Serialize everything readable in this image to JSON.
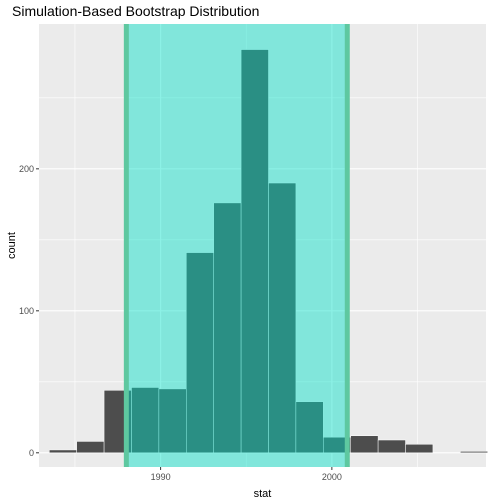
{
  "chart_data": {
    "type": "bar",
    "title": "Simulation-Based Bootstrap Distribution",
    "xlabel": "stat",
    "ylabel": "count",
    "xlim": [
      1982.9,
      2009.0
    ],
    "ylim": [
      -10,
      302
    ],
    "xticks": [
      1990,
      2000
    ],
    "yticks": [
      0,
      100,
      200
    ],
    "grid": true,
    "bin_width": 1.6,
    "bins": [
      {
        "x": 1984.3,
        "count": 2
      },
      {
        "x": 1985.9,
        "count": 8
      },
      {
        "x": 1987.5,
        "count": 44
      },
      {
        "x": 1989.1,
        "count": 46
      },
      {
        "x": 1990.7,
        "count": 45
      },
      {
        "x": 1992.3,
        "count": 141
      },
      {
        "x": 1993.9,
        "count": 176
      },
      {
        "x": 1995.5,
        "count": 284
      },
      {
        "x": 1997.1,
        "count": 190
      },
      {
        "x": 1998.7,
        "count": 36
      },
      {
        "x": 2000.3,
        "count": 11
      },
      {
        "x": 2001.9,
        "count": 12
      },
      {
        "x": 2003.5,
        "count": 9
      },
      {
        "x": 2005.1,
        "count": 6
      },
      {
        "x": 2006.7,
        "count": 0
      },
      {
        "x": 2008.3,
        "count": 1
      }
    ],
    "shade": {
      "lower": 1988.0,
      "upper": 2000.9,
      "fill": "#00e0c8",
      "line": "#5ec8a0"
    },
    "colors": {
      "bar_fill": "#4d4d4d",
      "bar_outline": "#ffffff",
      "panel": "#ebebeb",
      "grid": "#ffffff"
    }
  }
}
